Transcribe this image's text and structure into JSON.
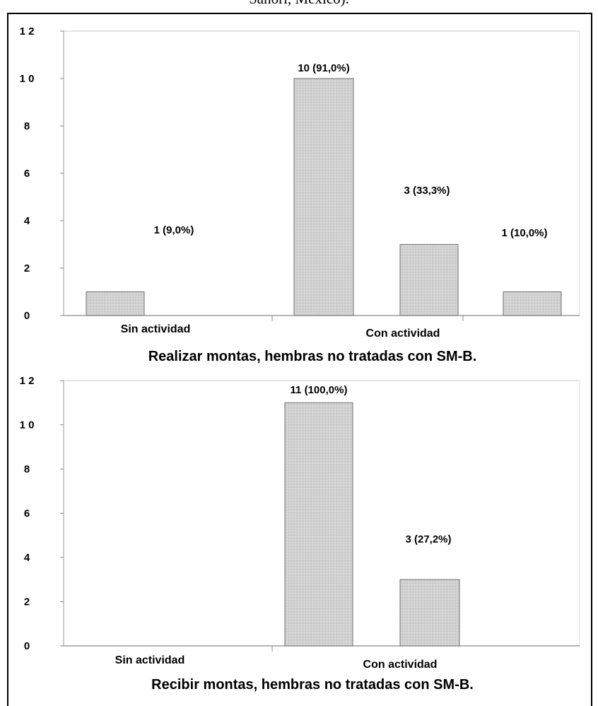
{
  "header": {
    "caption_fragment": "Sanori, México)."
  },
  "chart_data": [
    {
      "type": "bar",
      "title": "Realizar montas, hembras no tratadas con SM-B.",
      "categories": [
        "Sin actividad",
        "Con actividad"
      ],
      "ylim": [
        0,
        12
      ],
      "yticks": [
        0,
        2,
        4,
        6,
        8,
        10,
        12
      ],
      "ytick_labels": [
        "0",
        "2",
        "4",
        "6",
        "8",
        "1 0",
        "1 2"
      ],
      "bars": [
        {
          "category": "Sin actividad",
          "value": 1,
          "label": "1 (9,0%)"
        },
        {
          "category": "Con actividad",
          "value": 10,
          "label": "10 (91,0%)"
        },
        {
          "category": "Con actividad",
          "value": 3,
          "label": "3 (33,3%)"
        },
        {
          "category": "Con actividad",
          "value": 1,
          "label": "1 (10,0%)"
        }
      ],
      "bar_color": "#cfcfcf",
      "grid": false
    },
    {
      "type": "bar",
      "title": "Recibir montas, hembras no tratadas con SM-B.",
      "categories": [
        "Sin actividad",
        "Con actividad"
      ],
      "ylim": [
        0,
        12
      ],
      "yticks": [
        0,
        2,
        4,
        6,
        8,
        10,
        12
      ],
      "ytick_labels": [
        "0",
        "2",
        "4",
        "6",
        "8",
        "1 0",
        "1 2"
      ],
      "bars": [
        {
          "category": "Con actividad",
          "value": 11,
          "label": "11 (100,0%)"
        },
        {
          "category": "Con actividad",
          "value": 3,
          "label": "3 (27,2%)"
        }
      ],
      "bar_color": "#cfcfcf",
      "grid": false
    }
  ]
}
